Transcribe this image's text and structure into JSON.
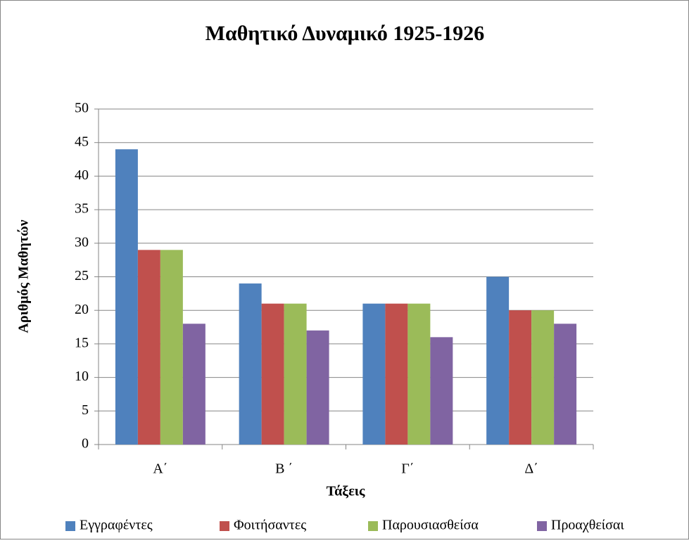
{
  "chart_data": {
    "type": "bar",
    "title": "Μαθητικό Δυναμικό 1925-1926",
    "x_label": "Τάξεις",
    "y_label": "Αριθμός Μαθητών",
    "categories": [
      "Α΄",
      "Β ΄",
      "Γ΄",
      "Δ΄"
    ],
    "series": [
      {
        "name": "Εγγραφέντες",
        "color": "#4f81bd",
        "values": [
          44,
          24,
          21,
          25
        ]
      },
      {
        "name": "Φοιτήσαντες",
        "color": "#c0504d",
        "values": [
          29,
          21,
          21,
          20
        ]
      },
      {
        "name": "Παρουσιασθείσα",
        "color": "#9bbb59",
        "values": [
          29,
          21,
          21,
          20
        ]
      },
      {
        "name": "Προαχθείσαι",
        "color": "#8064a2",
        "values": [
          18,
          17,
          16,
          18
        ]
      }
    ],
    "ylim": [
      0,
      50
    ],
    "yticks": [
      0,
      5,
      10,
      15,
      20,
      25,
      30,
      35,
      40,
      45,
      50
    ],
    "grid": true,
    "legend": "bottom"
  }
}
